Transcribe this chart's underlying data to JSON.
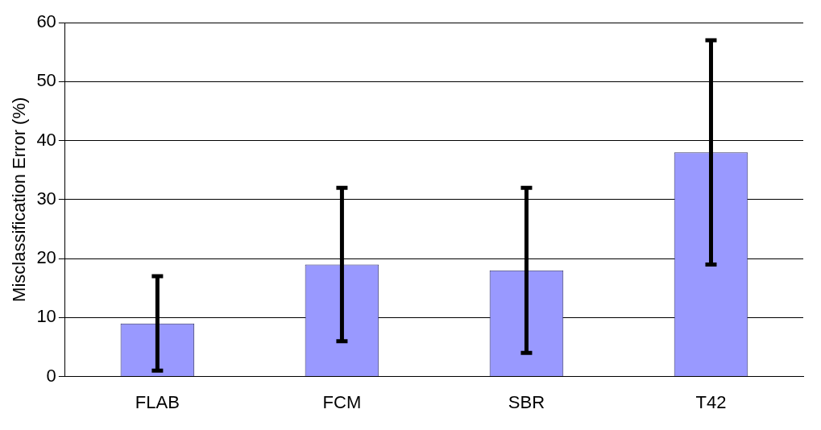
{
  "chart_data": {
    "type": "bar",
    "ylabel": "Misclassification Error (%)",
    "categories": [
      "FLAB",
      "FCM",
      "SBR",
      "T42"
    ],
    "values": [
      9,
      19,
      18,
      38
    ],
    "errors": [
      [
        1,
        17
      ],
      [
        6,
        32
      ],
      [
        4,
        32
      ],
      [
        19,
        57
      ]
    ],
    "color": "#9999ff",
    "ylim": [
      0,
      60
    ],
    "yticks": [
      0,
      10,
      20,
      30,
      40,
      50,
      60
    ],
    "grid": "y",
    "legend": false
  }
}
